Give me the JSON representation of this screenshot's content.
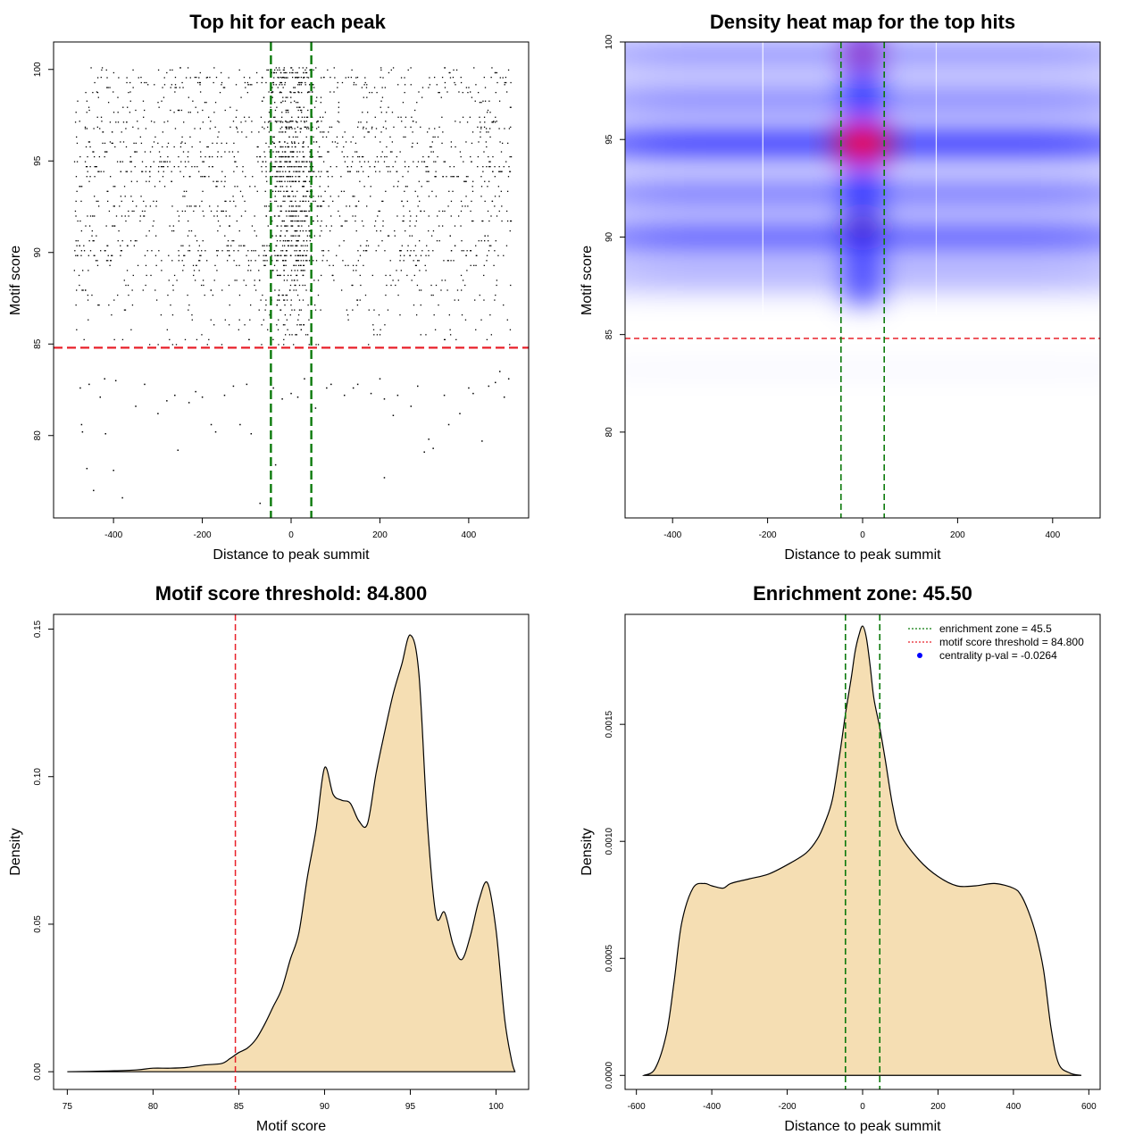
{
  "chart_data": [
    {
      "id": "scatter",
      "type": "scatter",
      "title": "Top hit for each peak",
      "xlabel": "Distance to peak summit",
      "ylabel": "Motif score",
      "xlim": [
        -535,
        535
      ],
      "ylim": [
        75.5,
        101.5
      ],
      "xticks": [
        "-400",
        "-200",
        "0",
        "200",
        "400"
      ],
      "yticks": [
        "80",
        "85",
        "90",
        "95",
        "100"
      ],
      "threshold_line": {
        "value": 84.8,
        "color": "#e8202a",
        "style": "dashed"
      },
      "zone_lines": {
        "values": [
          -45.5,
          45.5
        ],
        "color": "#0c7a0c",
        "style": "dashed"
      },
      "points_color": "#000000",
      "points": [
        [
          -475,
          82.6
        ],
        [
          -455,
          82.8
        ],
        [
          -430,
          82.1
        ],
        [
          -418,
          80.1
        ],
        [
          -472,
          80.6
        ],
        [
          -470,
          80.2
        ],
        [
          -460,
          78.2
        ],
        [
          -445,
          77.0
        ],
        [
          -400,
          78.1
        ],
        [
          -380,
          76.6
        ],
        [
          -420,
          83.1
        ],
        [
          -395,
          83.0
        ],
        [
          -350,
          81.6
        ],
        [
          -330,
          82.8
        ],
        [
          -300,
          81.2
        ],
        [
          -280,
          81.9
        ],
        [
          -262,
          82.2
        ],
        [
          -255,
          79.2
        ],
        [
          -230,
          81.8
        ],
        [
          -215,
          82.4
        ],
        [
          -200,
          82.1
        ],
        [
          -180,
          80.6
        ],
        [
          -170,
          80.2
        ],
        [
          -150,
          82.2
        ],
        [
          -130,
          82.7
        ],
        [
          -115,
          80.6
        ],
        [
          -100,
          82.8
        ],
        [
          -90,
          80.1
        ],
        [
          -70,
          76.3
        ],
        [
          -40,
          82.6
        ],
        [
          -20,
          82.0
        ],
        [
          0,
          82.3
        ],
        [
          15,
          82.1
        ],
        [
          30,
          83.1
        ],
        [
          55,
          81.5
        ],
        [
          80,
          82.6
        ],
        [
          90,
          82.8
        ],
        [
          120,
          82.2
        ],
        [
          140,
          82.6
        ],
        [
          150,
          82.8
        ],
        [
          180,
          82.3
        ],
        [
          200,
          83.1
        ],
        [
          210,
          82.0
        ],
        [
          230,
          81.1
        ],
        [
          240,
          82.2
        ],
        [
          270,
          81.6
        ],
        [
          285,
          82.7
        ],
        [
          300,
          79.1
        ],
        [
          310,
          79.8
        ],
        [
          320,
          79.3
        ],
        [
          345,
          82.2
        ],
        [
          355,
          80.6
        ],
        [
          380,
          81.2
        ],
        [
          400,
          82.6
        ],
        [
          410,
          82.3
        ],
        [
          430,
          79.7
        ],
        [
          445,
          82.7
        ],
        [
          460,
          82.9
        ],
        [
          470,
          83.5
        ],
        [
          480,
          82.1
        ],
        [
          490,
          83.1
        ],
        [
          210,
          77.7
        ],
        [
          -35,
          78.4
        ]
      ]
    },
    {
      "id": "heatmap",
      "type": "heatmap",
      "title": "Density heat map for the top hits",
      "xlabel": "Distance to peak summit",
      "ylabel": "Motif score",
      "xlim": [
        -500,
        500
      ],
      "ylim": [
        75.6,
        100
      ],
      "xticks": [
        "-400",
        "-200",
        "0",
        "200",
        "400"
      ],
      "yticks": [
        "80",
        "85",
        "90",
        "95",
        "100"
      ],
      "colors": {
        "low": "#ffffff",
        "mid": "#0000ff",
        "high": "#ff0000"
      },
      "threshold_line": {
        "value": 84.8,
        "color": "#e8202a",
        "style": "dashed"
      },
      "zone_lines": {
        "values": [
          -45.5,
          45.5
        ],
        "color": "#0c7a0c",
        "style": "dashed"
      },
      "bands": [
        {
          "score": 94.8,
          "intensity": 1.0
        },
        {
          "score": 90.0,
          "intensity": 0.75
        },
        {
          "score": 92.2,
          "intensity": 0.55
        },
        {
          "score": 97.0,
          "intensity": 0.45
        },
        {
          "score": 99.4,
          "intensity": 0.35
        },
        {
          "score": 88.2,
          "intensity": 0.2
        }
      ],
      "hotspots": [
        {
          "x": 0,
          "score": 94.8,
          "level": "red"
        },
        {
          "x": 0,
          "score": 99.4,
          "level": "dark-red"
        },
        {
          "x": 0,
          "score": 90.5,
          "level": "dark"
        }
      ]
    },
    {
      "id": "score-density",
      "type": "area",
      "title": "Motif score threshold: 84.800",
      "xlabel": "Motif score",
      "ylabel": "Density",
      "xlim": [
        74.2,
        101.9
      ],
      "ylim": [
        -0.006,
        0.155
      ],
      "xticks": [
        "75",
        "80",
        "85",
        "90",
        "95",
        "100"
      ],
      "yticks": [
        "0.00",
        "0.05",
        "0.10",
        "0.15"
      ],
      "fill": "#f5deb3",
      "threshold_line": {
        "value": 84.8,
        "color": "#e8202a",
        "style": "dashed"
      },
      "x": [
        75,
        77,
        79,
        80,
        81,
        82,
        83,
        84,
        84.5,
        85,
        85.5,
        86,
        86.5,
        87,
        87.5,
        88,
        88.5,
        89,
        89.5,
        90,
        90.5,
        91,
        91.5,
        92,
        92.5,
        93,
        93.5,
        94,
        94.5,
        95,
        95.5,
        96,
        96.5,
        97,
        97.5,
        98,
        98.5,
        99,
        99.5,
        100,
        100.5,
        100.9,
        101.1
      ],
      "y": [
        0,
        0.0002,
        0.0006,
        0.0012,
        0.0012,
        0.0015,
        0.0023,
        0.0028,
        0.0045,
        0.0065,
        0.008,
        0.011,
        0.016,
        0.022,
        0.028,
        0.038,
        0.047,
        0.066,
        0.082,
        0.103,
        0.094,
        0.092,
        0.091,
        0.085,
        0.084,
        0.101,
        0.115,
        0.128,
        0.138,
        0.148,
        0.135,
        0.084,
        0.053,
        0.054,
        0.043,
        0.038,
        0.046,
        0.058,
        0.064,
        0.048,
        0.018,
        0.004,
        0
      ]
    },
    {
      "id": "distance-density",
      "type": "area",
      "title": "Enrichment zone: 45.50",
      "xlabel": "Distance to peak summit",
      "ylabel": "Density",
      "xlim": [
        -630,
        630
      ],
      "ylim": [
        -6e-05,
        0.00197
      ],
      "xticks": [
        "-600",
        "-400",
        "-200",
        "0",
        "200",
        "400",
        "600"
      ],
      "yticks": [
        "0.0000",
        "0.0005",
        "0.0010",
        "0.0015"
      ],
      "fill": "#f5deb3",
      "zone_lines": {
        "values": [
          -45.5,
          45.5
        ],
        "color": "#0c7a0c",
        "style": "dashed"
      },
      "legend": {
        "position": "top-right",
        "entries": [
          {
            "label": "enrichment zone = 45.5",
            "color": "#0c7a0c",
            "kind": "dotted-line"
          },
          {
            "label": "motif score threshold = 84.800",
            "color": "#e8202a",
            "kind": "dotted-line"
          },
          {
            "label": "centrality p-val = -0.0264",
            "color": "#0000ff",
            "kind": "point"
          }
        ]
      },
      "x": [
        -580,
        -550,
        -520,
        -500,
        -480,
        -450,
        -420,
        -400,
        -370,
        -350,
        -300,
        -250,
        -200,
        -150,
        -120,
        -100,
        -80,
        -60,
        -45,
        -30,
        -20,
        -10,
        0,
        10,
        20,
        30,
        45,
        60,
        80,
        100,
        150,
        200,
        250,
        300,
        350,
        400,
        420,
        440,
        460,
        480,
        500,
        520,
        550,
        580
      ],
      "y": [
        0,
        3e-05,
        0.00018,
        0.0004,
        0.00065,
        0.0008,
        0.00082,
        0.00081,
        0.0008,
        0.00082,
        0.00084,
        0.00086,
        0.0009,
        0.00095,
        0.00101,
        0.00108,
        0.00118,
        0.00138,
        0.00155,
        0.0017,
        0.00181,
        0.00188,
        0.00192,
        0.00187,
        0.00175,
        0.00161,
        0.00149,
        0.00135,
        0.00115,
        0.00103,
        0.00092,
        0.00085,
        0.00081,
        0.00081,
        0.00082,
        0.0008,
        0.00077,
        0.0007,
        0.0006,
        0.00045,
        0.0002,
        5e-05,
        1e-05,
        0
      ]
    }
  ]
}
